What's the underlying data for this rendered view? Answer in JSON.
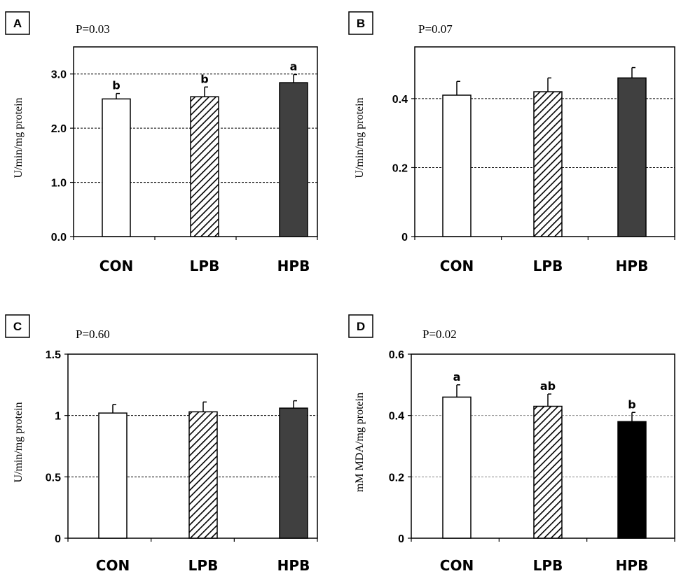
{
  "chart_data": [
    {
      "type": "bar",
      "panel": "A",
      "pvalue": "P=0.03",
      "ylabel": "U/min/mg protein",
      "categories": [
        "CON",
        "LPB",
        "HPB"
      ],
      "values": [
        2.54,
        2.58,
        2.84
      ],
      "errors": [
        0.1,
        0.18,
        0.15
      ],
      "letters": [
        "b",
        "b",
        "a"
      ],
      "fills": [
        "white",
        "hatch",
        "#404040"
      ],
      "ylim": [
        0,
        3.5
      ],
      "yticks": [
        0,
        1,
        2,
        3
      ],
      "ytick_labels": [
        "0.0",
        "1.0",
        "2.0",
        "3.0"
      ],
      "gridlines": [
        1,
        2,
        3
      ],
      "grid_color": "#000000"
    },
    {
      "type": "bar",
      "panel": "B",
      "pvalue": "P=0.07",
      "ylabel": "U/min/mg protein",
      "categories": [
        "CON",
        "LPB",
        "HPB"
      ],
      "values": [
        0.41,
        0.42,
        0.46
      ],
      "errors": [
        0.04,
        0.04,
        0.03
      ],
      "letters": [
        "",
        "",
        ""
      ],
      "fills": [
        "white",
        "hatch",
        "#404040"
      ],
      "ylim": [
        0,
        0.55
      ],
      "yticks": [
        0,
        0.2,
        0.4
      ],
      "ytick_labels": [
        "0",
        "0.2",
        "0.4"
      ],
      "gridlines": [
        0.2,
        0.4
      ],
      "grid_color": "#000000"
    },
    {
      "type": "bar",
      "panel": "C",
      "pvalue": "P=0.60",
      "ylabel": "U/min/mg protein",
      "categories": [
        "CON",
        "LPB",
        "HPB"
      ],
      "values": [
        1.02,
        1.03,
        1.06
      ],
      "errors": [
        0.07,
        0.08,
        0.06
      ],
      "letters": [
        "",
        "",
        ""
      ],
      "fills": [
        "white",
        "hatch",
        "#404040"
      ],
      "ylim": [
        0,
        1.5
      ],
      "yticks": [
        0,
        0.5,
        1,
        1.5
      ],
      "ytick_labels": [
        "0",
        "0.5",
        "1",
        "1.5"
      ],
      "gridlines": [
        0.5,
        1
      ],
      "grid_color": "#000000"
    },
    {
      "type": "bar",
      "panel": "D",
      "pvalue": "P=0.02",
      "ylabel": "mM MDA/mg protein",
      "categories": [
        "CON",
        "LPB",
        "HPB"
      ],
      "values": [
        0.46,
        0.43,
        0.38
      ],
      "errors": [
        0.04,
        0.04,
        0.03
      ],
      "letters": [
        "a",
        "ab",
        "b"
      ],
      "fills": [
        "white",
        "hatch",
        "#000000"
      ],
      "ylim": [
        0,
        0.6
      ],
      "yticks": [
        0,
        0.2,
        0.4,
        0.6
      ],
      "ytick_labels": [
        "0",
        "0.2",
        "0.4",
        "0.6"
      ],
      "gridlines": [
        0.2,
        0.4
      ],
      "grid_color": "#888888"
    }
  ]
}
